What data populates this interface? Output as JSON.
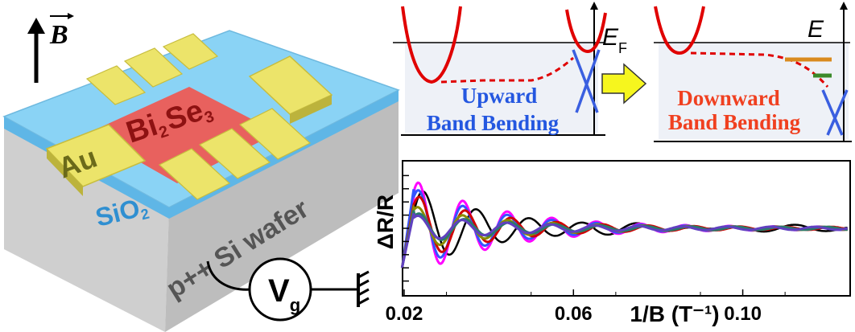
{
  "device": {
    "field_label": "B",
    "channel_material": {
      "part1": "Bi",
      "sub1": "2",
      "part2": "Se",
      "sub2": "3"
    },
    "contact_label": "Au",
    "oxide_label": {
      "base": "SiO",
      "sub": "2"
    },
    "substrate_label": "p++ Si wafer",
    "gate_symbol": {
      "base": "V",
      "sub": "g"
    }
  },
  "band_diagrams": {
    "left": {
      "energy_label": {
        "base": "E",
        "sub": "F"
      },
      "caption_line1": "Upward",
      "caption_line2": "Band Bending"
    },
    "right": {
      "energy_label": "E",
      "caption_line1": "Downward",
      "caption_line2": "Band Bending"
    }
  },
  "colors": {
    "substrate_top": "#8ad3f5",
    "channel": "#e8615e",
    "channel_text": "#8e1212",
    "gold": "#ece46a",
    "gray_text": "#555555",
    "band_red": "#e00000",
    "dirac_blue": "#3a5fe0",
    "up_caption": "#2457e0",
    "down_caption": "#f04020",
    "arrow_fill": "#f6f61e",
    "panel_bg": "#eef1f7",
    "orange_level": "#d98a1e",
    "green_level": "#3b8a2a"
  },
  "chart_data": {
    "type": "line",
    "title": "",
    "xlabel": "1/B (T⁻¹)",
    "ylabel": "ΔR/R",
    "xlim": [
      0.02,
      0.125
    ],
    "ylim": [
      -1.0,
      1.0
    ],
    "x_ticks": [
      "0.02",
      "0.06",
      "0.10"
    ],
    "x_tick_values": [
      0.02,
      0.06,
      0.1
    ],
    "grid": false,
    "series": [
      {
        "color": "#000000",
        "period": 0.0125,
        "phase": 0.0,
        "amp": 0.62,
        "decay": 0.018,
        "first": 0.35
      },
      {
        "color": "#ff00ff",
        "period": 0.0105,
        "phase": 0.4,
        "amp": 0.72,
        "decay": 0.02,
        "first": 0.55
      },
      {
        "color": "#3355ff",
        "period": 0.0105,
        "phase": 0.4,
        "amp": 0.6,
        "decay": 0.019,
        "first": 0.7
      },
      {
        "color": "#d00000",
        "period": 0.0108,
        "phase": 0.3,
        "amp": 0.5,
        "decay": 0.018,
        "first": 0.45
      },
      {
        "color": "#8b8b00",
        "period": 0.0106,
        "phase": 0.5,
        "amp": 0.32,
        "decay": 0.02,
        "first": 0.4
      },
      {
        "color": "#2a7a6a",
        "period": 0.0107,
        "phase": 0.35,
        "amp": 0.22,
        "decay": 0.02,
        "first": 0.35
      },
      {
        "color": "#6040c0",
        "period": 0.0104,
        "phase": 0.45,
        "amp": 0.18,
        "decay": 0.022,
        "first": 0.3
      }
    ]
  }
}
